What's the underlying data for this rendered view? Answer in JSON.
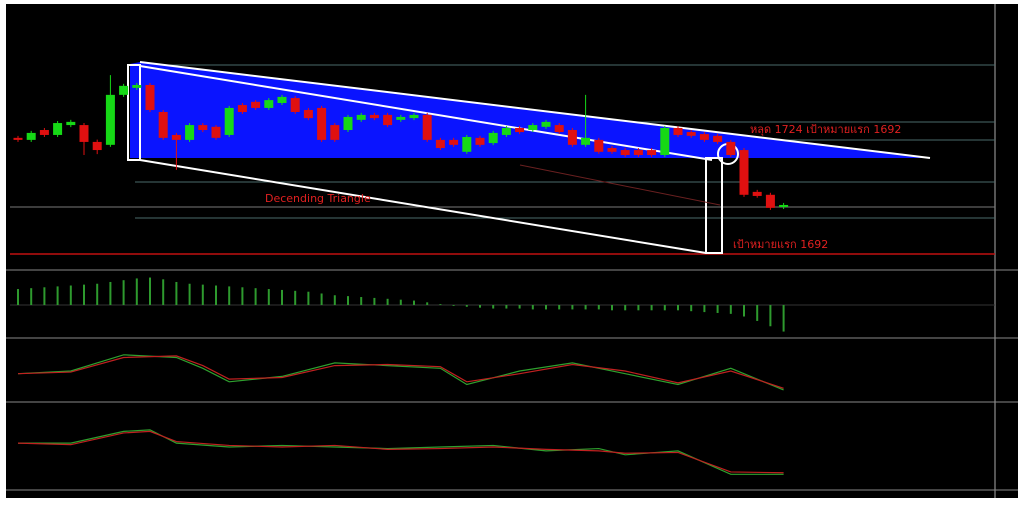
{
  "chart_data": [
    {
      "type": "candlestick",
      "annotations": [
        "Decending Triangle",
        "หลุด 1724 เป้าหมายแรก 1692",
        "เป้าหมายแรก 1692"
      ],
      "ylim": [
        1686.8,
        1776.3
      ],
      "up_color": "#16d916",
      "down_color": "#e01010",
      "ohlc": [
        [
          1731.6,
          1732.3,
          1730.2,
          1730.9
        ],
        [
          1730.9,
          1734.0,
          1730.2,
          1733.3
        ],
        [
          1734.3,
          1735.0,
          1731.9,
          1732.6
        ],
        [
          1732.6,
          1737.4,
          1731.9,
          1736.7
        ],
        [
          1736.0,
          1737.8,
          1735.3,
          1737.1
        ],
        [
          1736.0,
          1736.7,
          1725.7,
          1730.2
        ],
        [
          1730.2,
          1731.0,
          1726.0,
          1727.4
        ],
        [
          1729.2,
          1753.2,
          1728.5,
          1746.4
        ],
        [
          1746.4,
          1750.2,
          1745.7,
          1749.5
        ],
        [
          1748.8,
          1750.5,
          1748.1,
          1749.8
        ],
        [
          1749.8,
          1750.5,
          1740.5,
          1741.2
        ],
        [
          1740.5,
          1741.2,
          1730.9,
          1731.6
        ],
        [
          1732.6,
          1733.3,
          1720.6,
          1730.9
        ],
        [
          1730.9,
          1736.7,
          1730.2,
          1736.0
        ],
        [
          1736.0,
          1736.7,
          1733.6,
          1734.3
        ],
        [
          1735.4,
          1736.0,
          1730.9,
          1731.6
        ],
        [
          1732.6,
          1742.6,
          1731.9,
          1741.9
        ],
        [
          1742.9,
          1743.6,
          1739.8,
          1740.5
        ],
        [
          1744.0,
          1744.6,
          1741.2,
          1741.9
        ],
        [
          1741.9,
          1745.3,
          1741.2,
          1744.6
        ],
        [
          1743.6,
          1746.4,
          1742.9,
          1745.7
        ],
        [
          1745.3,
          1746.0,
          1739.8,
          1740.5
        ],
        [
          1741.2,
          1741.9,
          1737.7,
          1738.4
        ],
        [
          1741.9,
          1742.6,
          1730.2,
          1730.9
        ],
        [
          1736.0,
          1736.7,
          1730.2,
          1730.9
        ],
        [
          1734.3,
          1739.5,
          1733.6,
          1738.8
        ],
        [
          1737.8,
          1740.2,
          1737.1,
          1739.5
        ],
        [
          1739.5,
          1740.2,
          1737.7,
          1738.4
        ],
        [
          1739.5,
          1740.2,
          1735.3,
          1736.0
        ],
        [
          1737.8,
          1739.5,
          1737.1,
          1738.8
        ],
        [
          1738.4,
          1740.2,
          1737.7,
          1739.5
        ],
        [
          1739.5,
          1740.2,
          1730.2,
          1730.9
        ],
        [
          1730.9,
          1731.6,
          1727.4,
          1728.1
        ],
        [
          1730.9,
          1731.6,
          1728.5,
          1729.2
        ],
        [
          1726.8,
          1732.6,
          1726.1,
          1731.9
        ],
        [
          1731.6,
          1732.3,
          1728.5,
          1729.2
        ],
        [
          1729.8,
          1734.0,
          1729.1,
          1733.3
        ],
        [
          1732.6,
          1735.7,
          1731.9,
          1735.0
        ],
        [
          1735.0,
          1735.7,
          1732.9,
          1733.6
        ],
        [
          1734.3,
          1736.7,
          1733.6,
          1736.0
        ],
        [
          1735.4,
          1737.8,
          1734.7,
          1737.1
        ],
        [
          1736.0,
          1736.7,
          1732.9,
          1733.6
        ],
        [
          1734.3,
          1735.0,
          1728.5,
          1729.2
        ],
        [
          1729.2,
          1746.4,
          1728.5,
          1731.6
        ],
        [
          1730.9,
          1731.6,
          1726.1,
          1726.8
        ],
        [
          1728.1,
          1728.8,
          1726.1,
          1726.8
        ],
        [
          1727.4,
          1728.1,
          1725.0,
          1725.7
        ],
        [
          1727.4,
          1728.1,
          1725.0,
          1725.7
        ],
        [
          1727.4,
          1728.1,
          1725.0,
          1725.7
        ],
        [
          1725.7,
          1735.7,
          1725.0,
          1735.0
        ],
        [
          1735.0,
          1735.7,
          1731.9,
          1732.6
        ],
        [
          1733.6,
          1734.3,
          1731.6,
          1732.3
        ],
        [
          1732.9,
          1733.6,
          1730.2,
          1730.9
        ],
        [
          1732.3,
          1733.0,
          1729.5,
          1730.2
        ],
        [
          1730.2,
          1730.9,
          1725.0,
          1725.7
        ],
        [
          1727.4,
          1728.1,
          1711.3,
          1712.0
        ],
        [
          1713.0,
          1713.7,
          1711.0,
          1711.6
        ],
        [
          1712.0,
          1712.7,
          1706.8,
          1707.5
        ],
        [
          1707.8,
          1709.2,
          1707.1,
          1708.5
        ]
      ]
    },
    {
      "type": "histogram-panel",
      "color": "#2e9a2e",
      "ylim": [
        -3.5,
        3.5
      ],
      "values": [
        1.8,
        1.9,
        2.0,
        2.1,
        2.2,
        2.3,
        2.4,
        2.6,
        2.8,
        3.0,
        3.1,
        2.9,
        2.6,
        2.4,
        2.3,
        2.2,
        2.1,
        2.0,
        1.9,
        1.8,
        1.7,
        1.6,
        1.5,
        1.3,
        1.1,
        1.0,
        0.9,
        0.8,
        0.7,
        0.6,
        0.5,
        0.3,
        0.1,
        -0.1,
        -0.2,
        -0.3,
        -0.4,
        -0.4,
        -0.4,
        -0.5,
        -0.5,
        -0.5,
        -0.5,
        -0.5,
        -0.5,
        -0.6,
        -0.6,
        -0.6,
        -0.6,
        -0.6,
        -0.6,
        -0.7,
        -0.8,
        -0.9,
        -1.0,
        -1.3,
        -1.8,
        -2.4,
        -3.0
      ]
    },
    {
      "type": "line-panel",
      "ylim": [
        0,
        100
      ],
      "x": [
        0,
        4,
        8,
        12,
        14,
        16,
        20,
        24,
        28,
        32,
        34,
        38,
        42,
        46,
        50,
        54,
        58
      ],
      "series": [
        {
          "color": "#2ea02e",
          "values": [
            45,
            50,
            80,
            75,
            55,
            30,
            40,
            65,
            60,
            55,
            25,
            50,
            65,
            45,
            25,
            55,
            15
          ]
        },
        {
          "color": "#c02020",
          "values": [
            45,
            48,
            75,
            78,
            60,
            35,
            38,
            60,
            62,
            58,
            30,
            45,
            62,
            50,
            28,
            50,
            18
          ]
        }
      ]
    },
    {
      "type": "line-panel",
      "ylim": [
        0,
        100
      ],
      "x": [
        0,
        4,
        8,
        10,
        12,
        16,
        20,
        24,
        28,
        32,
        36,
        40,
        44,
        46,
        50,
        54,
        58
      ],
      "series": [
        {
          "color": "#2ea02e",
          "values": [
            55,
            55,
            70,
            72,
            55,
            50,
            52,
            50,
            48,
            50,
            52,
            45,
            48,
            40,
            45,
            15,
            15
          ]
        },
        {
          "color": "#c02020",
          "values": [
            55,
            53,
            68,
            70,
            57,
            52,
            50,
            52,
            47,
            48,
            50,
            47,
            45,
            42,
            43,
            18,
            17
          ]
        }
      ]
    }
  ]
}
